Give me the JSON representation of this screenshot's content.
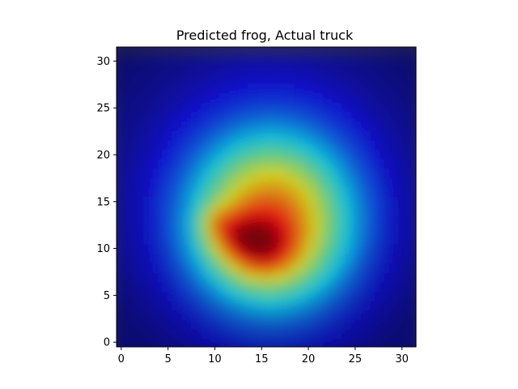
{
  "chart_data": {
    "type": "heatmap",
    "title": "Predicted frog, Actual truck",
    "xlabel": "",
    "ylabel": "",
    "xlim": [
      -0.5,
      31.5
    ],
    "ylim": [
      31.5,
      -0.5
    ],
    "x_ticks": [
      0,
      5,
      10,
      15,
      20,
      25,
      30
    ],
    "y_ticks": [
      0,
      5,
      10,
      15,
      20,
      25,
      30
    ],
    "grid": false,
    "colormap": "jet",
    "blobs": [
      {
        "cx": 16,
        "cy": 14,
        "sx": 6.5,
        "sy": 7.0,
        "amp": 0.75
      },
      {
        "cx": 15,
        "cy": 11,
        "sx": 2.5,
        "sy": 2.2,
        "amp": 0.25
      },
      {
        "cx": 12,
        "cy": 12.5,
        "sx": 2.2,
        "sy": 1.8,
        "amp": 0.18
      },
      {
        "cx": 10,
        "cy": 14,
        "sx": 1.2,
        "sy": 1.2,
        "amp": 0.1
      }
    ]
  }
}
